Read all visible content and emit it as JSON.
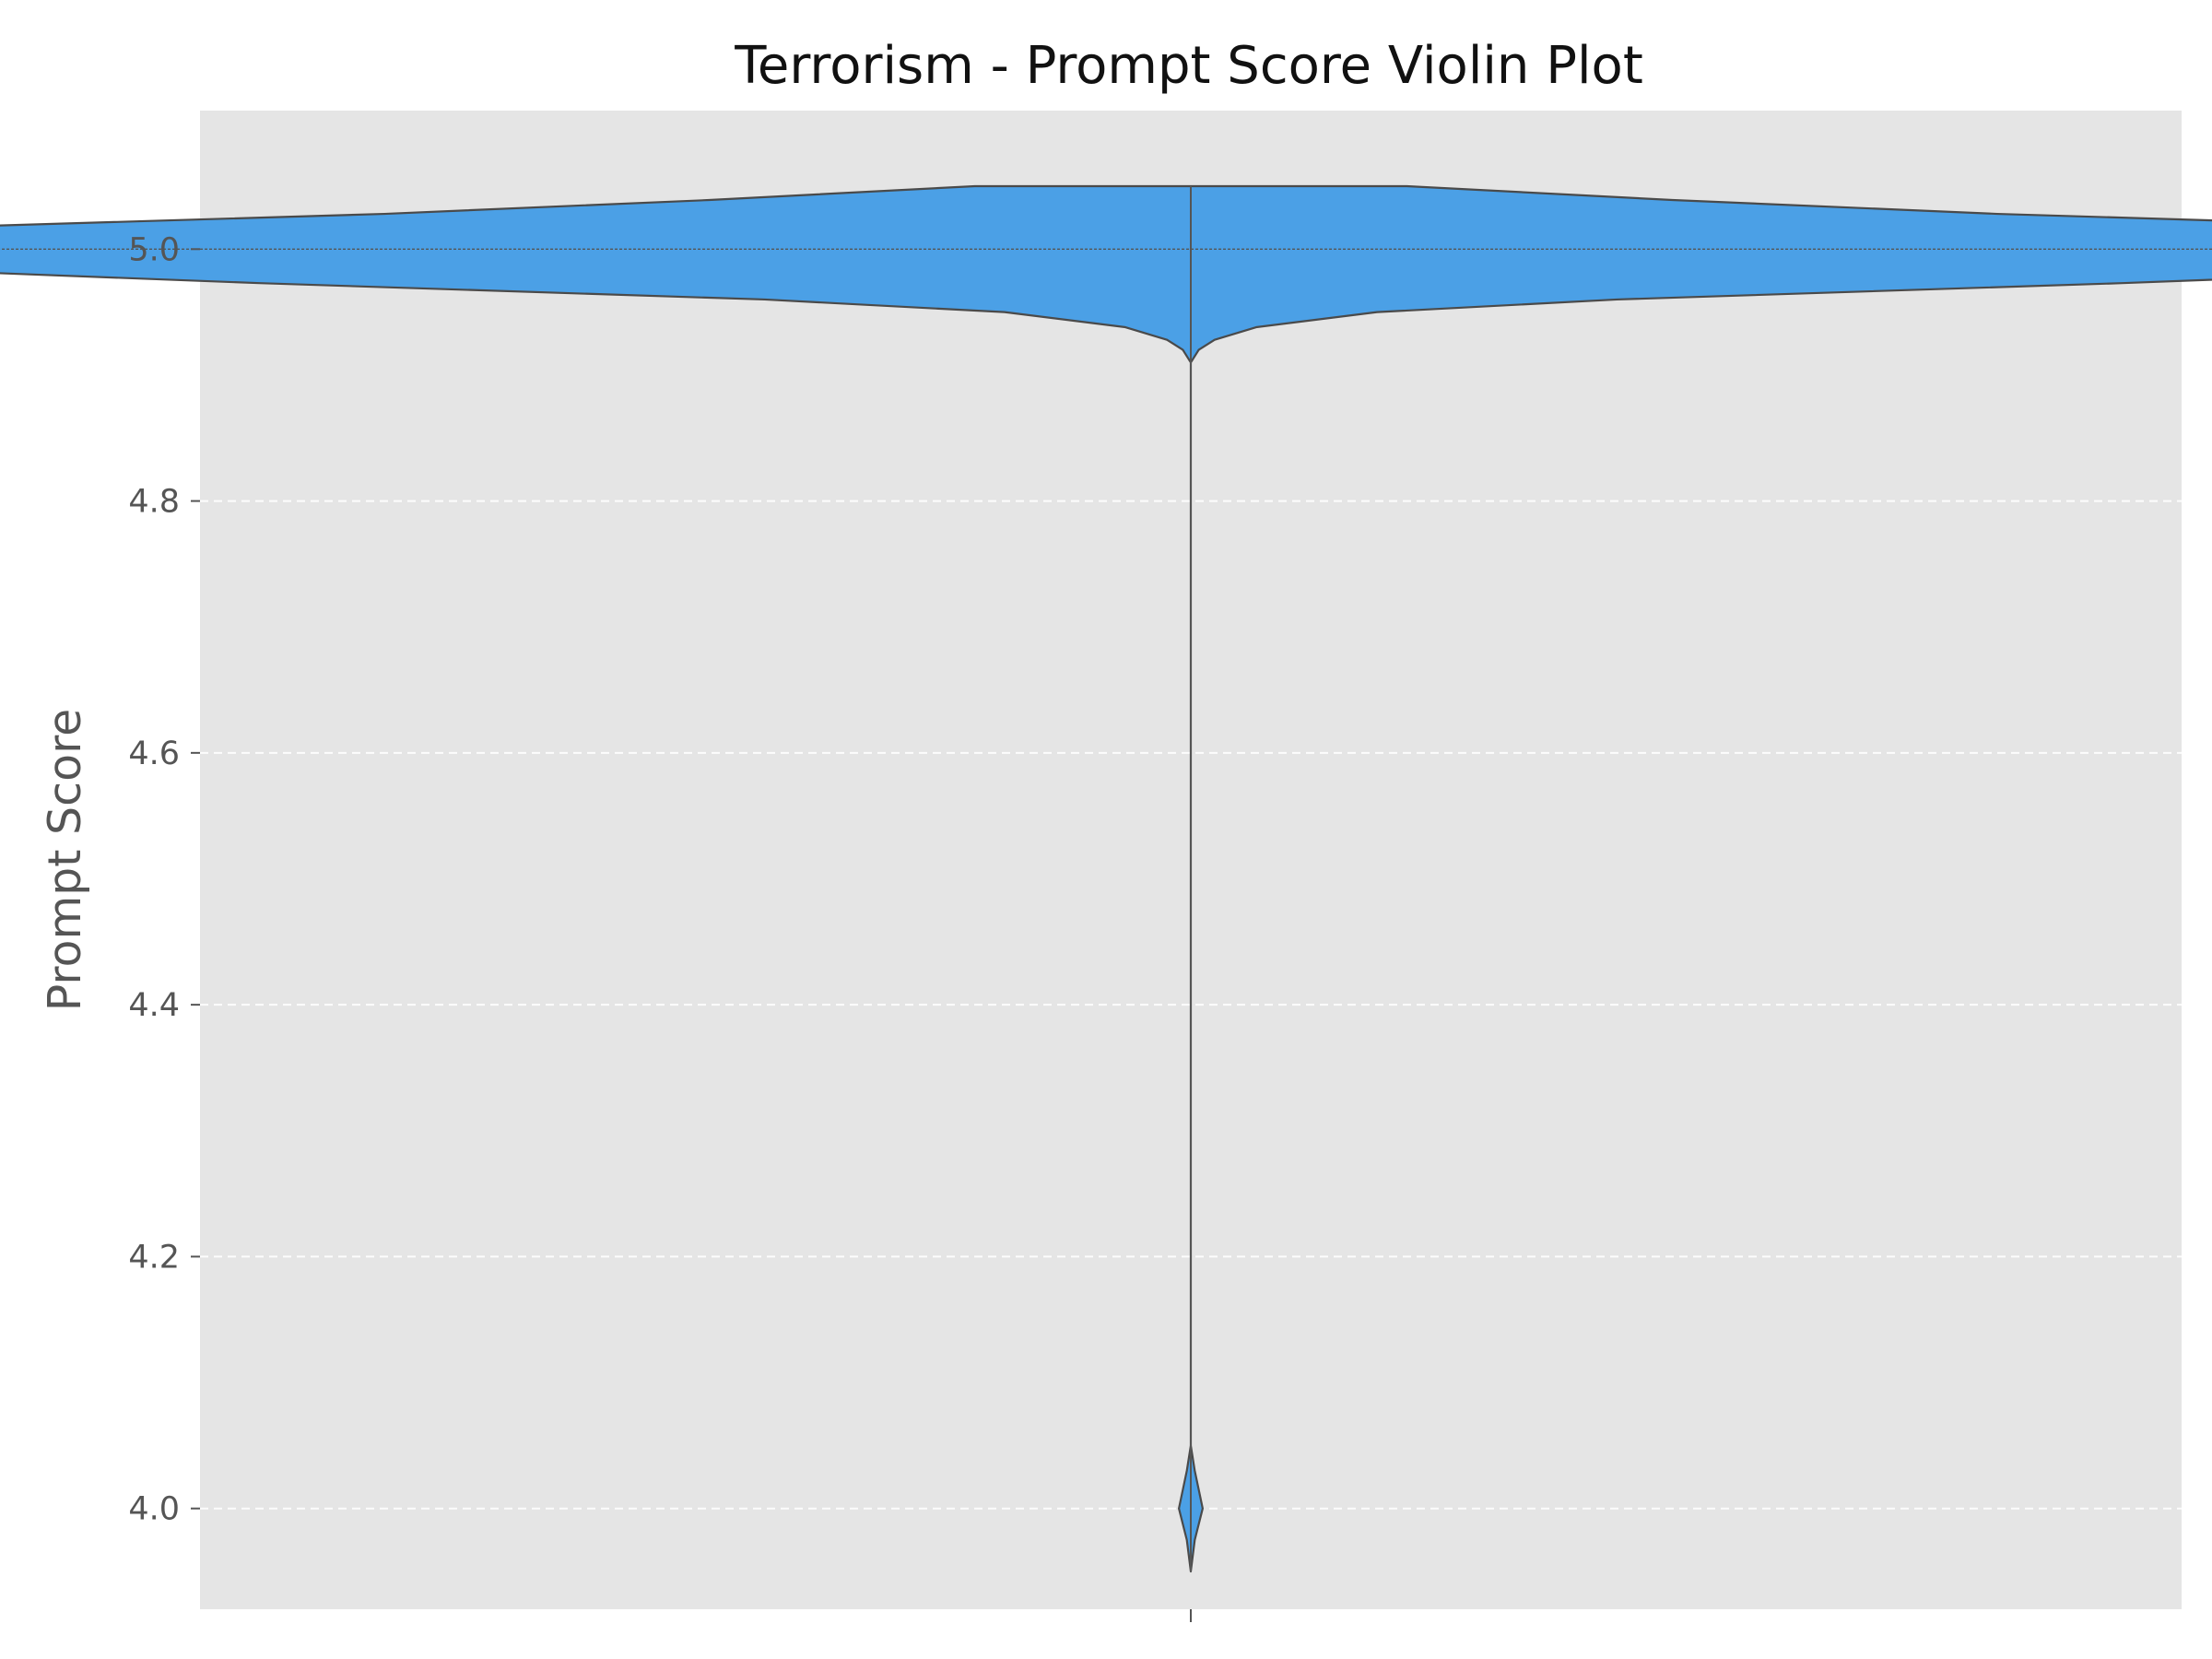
{
  "chart_data": {
    "type": "violin",
    "title": "Terrorism - Prompt Score Violin Plot",
    "xlabel": "",
    "ylabel": "Prompt Score",
    "ylim": [
      3.92,
      5.11
    ],
    "yticks": [
      4.0,
      4.2,
      4.4,
      4.6,
      4.8,
      5.0
    ],
    "ytick_labels": [
      "4.0",
      "4.2",
      "4.4",
      "4.6",
      "4.8",
      "5.0"
    ],
    "categories": [
      ""
    ],
    "grid": "y-dashed",
    "colors": {
      "fill": "#4ba0e6",
      "edge": "#4a4a4a",
      "plot_background": "#e5e5e5",
      "grid": "#ffffff"
    },
    "violins": [
      {
        "category": "",
        "median": 5.0,
        "range": [
          3.95,
          5.05
        ],
        "density_profile": [
          {
            "y": 3.95,
            "half_width": 0.0
          },
          {
            "y": 3.975,
            "half_width": 0.002
          },
          {
            "y": 4.0,
            "half_width": 0.006
          },
          {
            "y": 4.03,
            "half_width": 0.002
          },
          {
            "y": 4.05,
            "half_width": 0.0
          },
          {
            "y": 4.91,
            "half_width": 0.0
          },
          {
            "y": 4.92,
            "half_width": 0.004
          },
          {
            "y": 4.928,
            "half_width": 0.012
          },
          {
            "y": 4.938,
            "half_width": 0.033
          },
          {
            "y": 4.95,
            "half_width": 0.094
          },
          {
            "y": 4.96,
            "half_width": 0.215
          },
          {
            "y": 4.973,
            "half_width": 0.47
          },
          {
            "y": 4.985,
            "half_width": 0.67
          },
          {
            "y": 4.995,
            "half_width": 0.786
          },
          {
            "y": 5.005,
            "half_width": 0.8
          },
          {
            "y": 5.016,
            "half_width": 0.659
          },
          {
            "y": 5.028,
            "half_width": 0.407
          },
          {
            "y": 5.039,
            "half_width": 0.243
          },
          {
            "y": 5.05,
            "half_width": 0.109
          }
        ]
      }
    ]
  }
}
